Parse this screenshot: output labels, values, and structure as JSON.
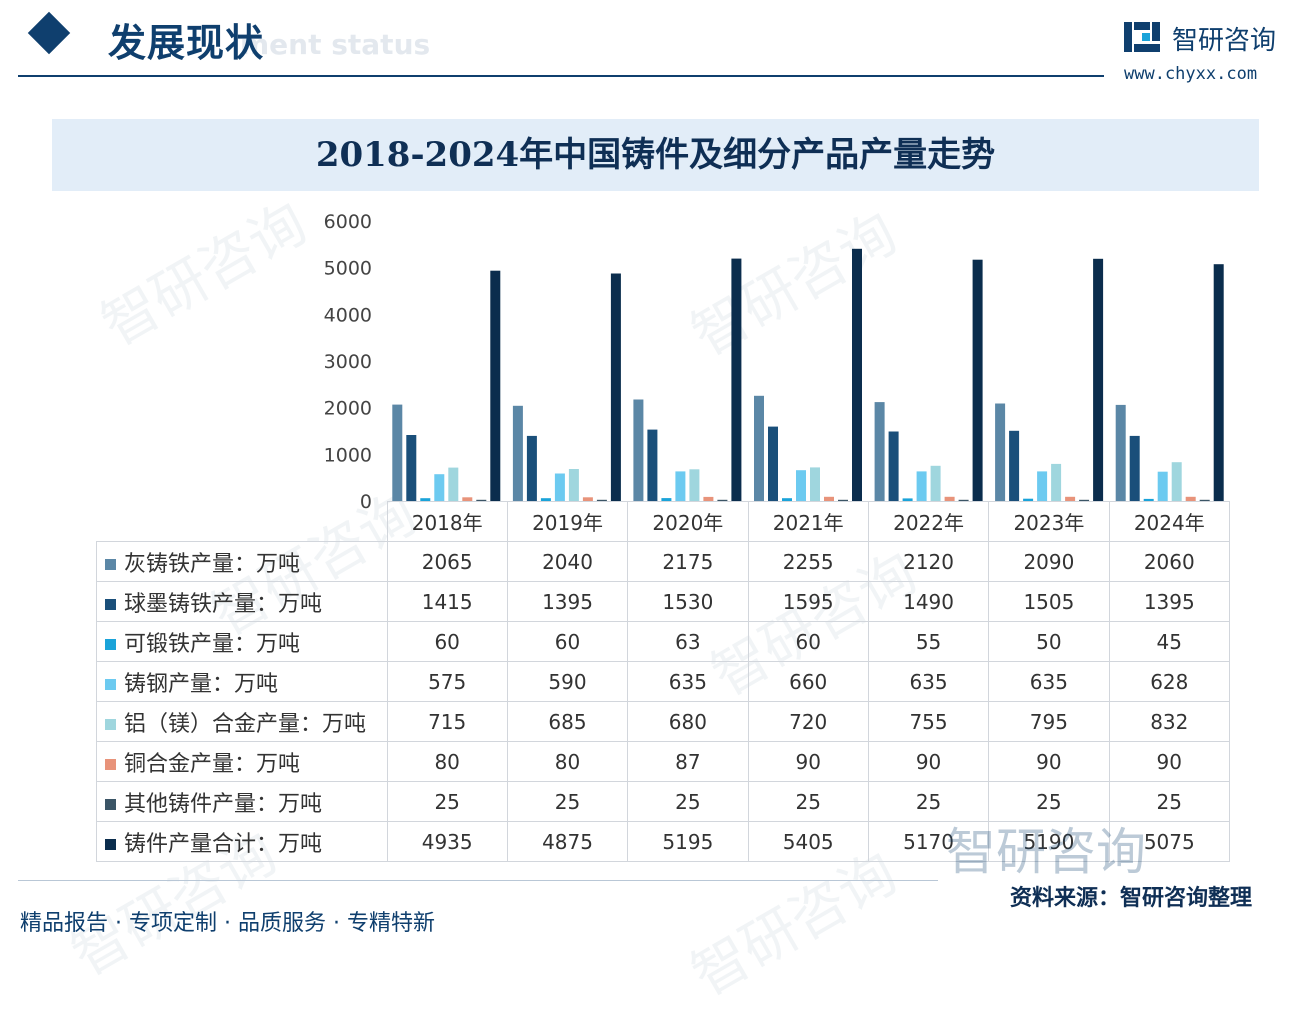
{
  "header": {
    "section_title": "发展现状",
    "section_subtitle": "ment status",
    "brand_name": "智研咨询",
    "brand_url": "www.chyxx.com"
  },
  "chart_data": {
    "type": "bar",
    "title": "2018-2024年中国铸件及细分产品产量走势",
    "categories": [
      "2018年",
      "2019年",
      "2020年",
      "2021年",
      "2022年",
      "2023年",
      "2024年"
    ],
    "ylim": [
      0,
      6000
    ],
    "yticks": [
      "6000",
      "5000",
      "4000",
      "3000",
      "2000",
      "1000",
      "0"
    ],
    "ytick_values": [
      6000,
      5000,
      4000,
      3000,
      2000,
      1000,
      0
    ],
    "series": [
      {
        "name": "灰铸铁产量：万吨",
        "color": "#5b87a6",
        "values": [
          2065,
          2040,
          2175,
          2255,
          2120,
          2090,
          2060
        ]
      },
      {
        "name": "球墨铸铁产量：万吨",
        "color": "#1a4f7a",
        "values": [
          1415,
          1395,
          1530,
          1595,
          1490,
          1505,
          1395
        ]
      },
      {
        "name": "可锻铁产量：万吨",
        "color": "#1aa3d9",
        "values": [
          60,
          60,
          63,
          60,
          55,
          50,
          45
        ]
      },
      {
        "name": "铸钢产量：万吨",
        "color": "#6ccaf0",
        "values": [
          575,
          590,
          635,
          660,
          635,
          635,
          628
        ]
      },
      {
        "name": "铝（镁）合金产量：万吨",
        "color": "#9fd6de",
        "values": [
          715,
          685,
          680,
          720,
          755,
          795,
          832
        ]
      },
      {
        "name": "铜合金产量：万吨",
        "color": "#e8937a",
        "values": [
          80,
          80,
          87,
          90,
          90,
          90,
          90
        ]
      },
      {
        "name": "其他铸件产量：万吨",
        "color": "#3b5566",
        "values": [
          25,
          25,
          25,
          25,
          25,
          25,
          25
        ]
      },
      {
        "name": "铸件产量合计：万吨",
        "color": "#0b2d4d",
        "values": [
          4935,
          4875,
          5195,
          5405,
          5170,
          5190,
          5075
        ]
      }
    ],
    "display_values": [
      [
        "2065",
        "2040",
        "2175",
        "2255",
        "2120",
        "2090",
        "2060"
      ],
      [
        "1415",
        "1395",
        "1530",
        "1595",
        "1490",
        "1505",
        "1395"
      ],
      [
        "60",
        "60",
        "63",
        "60",
        "55",
        "50",
        "45"
      ],
      [
        "575",
        "590",
        "635",
        "660",
        "635",
        "635",
        "628"
      ],
      [
        "715",
        "685",
        "680",
        "720",
        "755",
        "795",
        "832"
      ],
      [
        "80",
        "80",
        "87",
        "90",
        "90",
        "90",
        "90"
      ],
      [
        "25",
        "25",
        "25",
        "25",
        "25",
        "25",
        "25"
      ],
      [
        "4935",
        "4875",
        "5195",
        "5405",
        "5170",
        "5190",
        "5075"
      ]
    ],
    "grid": false,
    "legend_placement": "data-table"
  },
  "footer": {
    "slogan": "精品报告 · 专项定制 · 品质服务 · 专精特新",
    "source": "资料来源：智研咨询整理"
  },
  "watermark": {
    "text": "智研咨询"
  }
}
